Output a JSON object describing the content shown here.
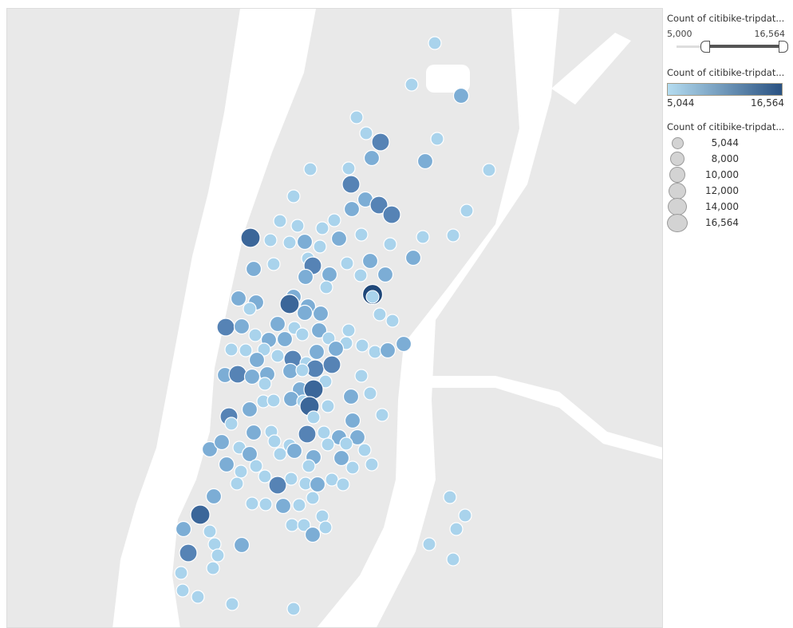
{
  "filter_legend": {
    "title": "Count of citibike-tripdat...",
    "min_label": "5,000",
    "max_label": "16,564",
    "range": [
      5000,
      16564
    ]
  },
  "color_legend": {
    "title": "Count of citibike-tripdat...",
    "min_label": "5,044",
    "max_label": "16,564",
    "colors": [
      "#b4dcf0",
      "#2a5282"
    ]
  },
  "size_legend": {
    "title": "Count of citibike-tripdat...",
    "items": [
      "5,044",
      "8,000",
      "10,000",
      "12,000",
      "14,000",
      "16,564"
    ]
  },
  "map": {
    "land_color": "#e9e9e9",
    "water_color": "#ffffff",
    "station_count_range": [
      5044,
      16564
    ]
  }
}
